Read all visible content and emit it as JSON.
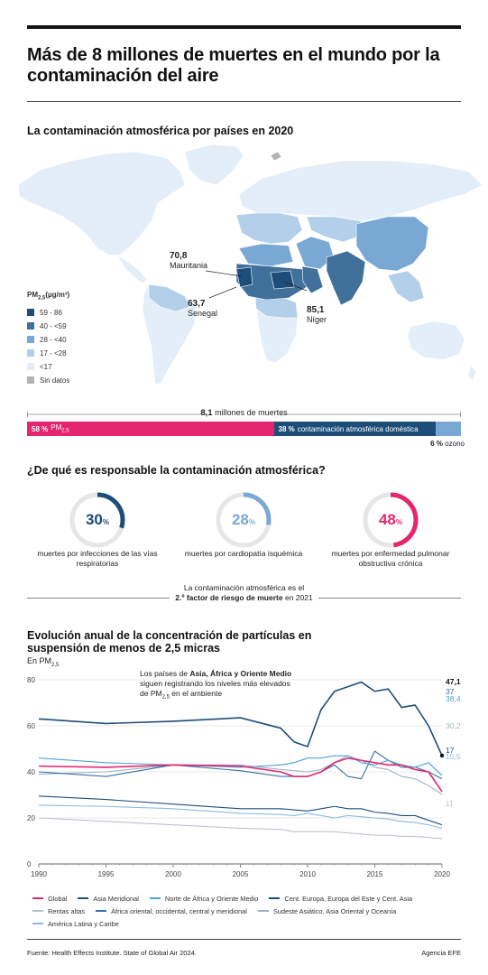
{
  "title": "Más de 8 millones de muertes en el mundo por la contaminación del aire",
  "map": {
    "title": "La contaminación atmosférica por países en 2020",
    "legend_title": "PM2,5(µg/m³)",
    "legend": [
      {
        "label": "59 - 86",
        "color": "#1d4e79"
      },
      {
        "label": "40 - <59",
        "color": "#41719a"
      },
      {
        "label": "28 - <40",
        "color": "#7aa8d4"
      },
      {
        "label": "17 - <28",
        "color": "#b3cfe9"
      },
      {
        "label": "<17",
        "color": "#e3eef8"
      },
      {
        "label": "Sin datos",
        "color": "#b4b4b4"
      }
    ],
    "callouts": [
      {
        "value": "70,8",
        "country": "Mauritania"
      },
      {
        "value": "63,7",
        "country": "Senegal"
      },
      {
        "value": "85,1",
        "country": "Níger"
      }
    ]
  },
  "deaths": {
    "total_value": "8,1",
    "total_text": "millones de muertes",
    "segments": [
      {
        "pct_value": 58,
        "pct": "58 %",
        "label": "PM2,5",
        "color": "#e4266f"
      },
      {
        "pct_value": 38,
        "pct": "38 %",
        "label": "contaminación atmosférica doméstica",
        "color": "#1d4e79"
      },
      {
        "pct_value": 6,
        "pct": "6 %",
        "label": "ozono",
        "color": "#7aa8d4"
      }
    ]
  },
  "responsibility": {
    "title": "¿De qué es responsable la contaminación atmosférica?",
    "items": [
      {
        "value": 30,
        "num": "30",
        "unit": "%",
        "color": "#1d4e79",
        "caption": "muertes por infecciones de las vías respiratorias"
      },
      {
        "value": 28,
        "num": "28",
        "unit": "%",
        "color": "#7aa8d4",
        "caption": "muertes por cardiopatía isquémica"
      },
      {
        "value": 48,
        "num": "48",
        "unit": "%",
        "color": "#e4266f",
        "caption": "muertes por enfermedad pulmonar obstructiva crónica"
      }
    ],
    "factor_line1": "La contaminación atmosférica es el",
    "factor_bold": "2.º factor de riesgo de muerte",
    "factor_rest": "en 2021"
  },
  "evolution": {
    "title": "Evolución anual de la concentración de partículas en suspensión de menos de 2,5 micras",
    "unit": "En PM2,5",
    "annotation_pre": "Los países de",
    "annotation_bold": "Asia, África y Oriente Medio",
    "annotation_post": "siguen registrando los niveles más elevados de PM2,5 en el ambiente"
  },
  "chart_data": {
    "type": "line",
    "ylim": [
      0,
      80
    ],
    "xlim": [
      1990,
      2020
    ],
    "y_ticks": [
      0,
      20,
      40,
      60,
      80
    ],
    "x_ticks": [
      1990,
      1995,
      2000,
      2005,
      2010,
      2015,
      2020
    ],
    "x": [
      1990,
      1995,
      2000,
      2005,
      2008,
      2009,
      2010,
      2011,
      2012,
      2013,
      2014,
      2015,
      2016,
      2017,
      2018,
      2019,
      2020
    ],
    "series": [
      {
        "name": "Global",
        "color": "#e4266f",
        "end_label": "31,4",
        "bold": true,
        "values": [
          42.5,
          42,
          43,
          42.5,
          40,
          38,
          38,
          40,
          44,
          46,
          45,
          44,
          43,
          43,
          41,
          40,
          31.4
        ]
      },
      {
        "name": "Asia Meridional",
        "color": "#1d4e79",
        "end_label": "47,1",
        "bold": true,
        "values": [
          63,
          61,
          62,
          63.5,
          59,
          53,
          51,
          67,
          75,
          77,
          79,
          75,
          76,
          68,
          69,
          60,
          47.1
        ]
      },
      {
        "name": "Norte de África y Oriente Medio",
        "color": "#4fa3d9",
        "end_label": "38,4",
        "bold": false,
        "values": [
          46,
          44,
          43,
          42,
          43,
          44,
          46,
          46,
          47,
          47,
          44,
          43,
          45,
          43,
          42,
          44,
          38.4
        ]
      },
      {
        "name": "Cent. Europa, Europa del Este y Cent. Asia",
        "color": "#1d4e79",
        "end_label": "17",
        "bold": false,
        "values": [
          29.5,
          28,
          26,
          24,
          24,
          23.5,
          23,
          24,
          25,
          24,
          24,
          22.5,
          22,
          21,
          21,
          19,
          17
        ]
      },
      {
        "name": "Rentas altas",
        "color": "#b9c2cc",
        "end_label": "11",
        "bold": false,
        "values": [
          20,
          18.5,
          17,
          15.5,
          15,
          14,
          14,
          14,
          14,
          13.5,
          13,
          12.5,
          12.5,
          12,
          12,
          11.5,
          11
        ]
      },
      {
        "name": "África oriental, occidental, central y meridional",
        "color": "#3570a8",
        "end_label": "37",
        "bold": false,
        "values": [
          40,
          38,
          43,
          40.5,
          38,
          38,
          38,
          40,
          43,
          38,
          37,
          49,
          45,
          42,
          42,
          40,
          37
        ]
      },
      {
        "name": "Sudeste Asiático, Asia Oriental y Oceanía",
        "color": "#9fb4c8",
        "end_label": "30,2",
        "bold": false,
        "values": [
          39,
          40,
          43,
          43,
          41,
          40.5,
          40,
          41,
          44,
          47,
          45,
          42,
          41,
          38,
          37,
          34,
          30.2
        ]
      },
      {
        "name": "América Latina y Caribe",
        "color": "#8bbbe4",
        "end_label": "15,5",
        "bold": false,
        "values": [
          25.5,
          25,
          24,
          22,
          21.5,
          21,
          22,
          21,
          20,
          21,
          20.5,
          20,
          19.5,
          18.5,
          18,
          17,
          15.5
        ]
      }
    ]
  },
  "footer": {
    "source": "Fuente: Health Effects Institute. State of Global Air 2024.",
    "agency": "Agencia EFE"
  }
}
